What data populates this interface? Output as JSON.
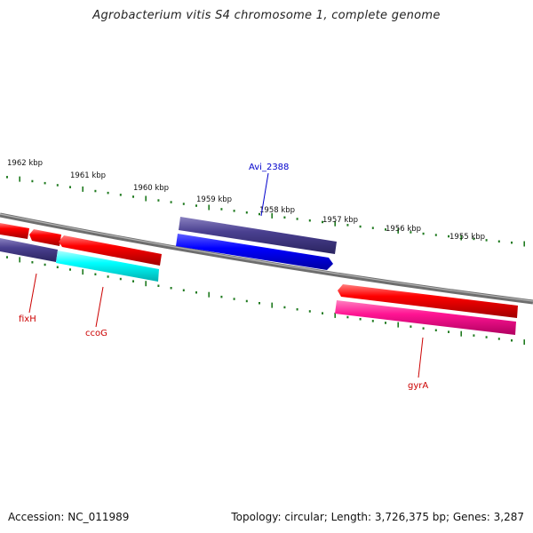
{
  "title": "Agrobacterium vitis S4 chromosome 1, complete genome",
  "footer": {
    "accession": "Accession: NC_011989",
    "summary": "Topology: circular; Length: 3,726,375 bp; Genes: 3,287"
  },
  "colors": {
    "backbone": "#808080",
    "tick": "#1f7a1f",
    "red_gene": "#ff0000",
    "purple_gene": "#4a4090",
    "cyan_gene": "#00ffff",
    "blue_gene": "#0000ff",
    "pink_gene": "#ff1493",
    "label_red": "#cc0000",
    "label_blue": "#0000cc"
  },
  "scale_labels": [
    {
      "text": "1962 kbp",
      "kbp": 1962
    },
    {
      "text": "1961 kbp",
      "kbp": 1961
    },
    {
      "text": "1960 kbp",
      "kbp": 1960
    },
    {
      "text": "1959 kbp",
      "kbp": 1959
    },
    {
      "text": "1958 kbp",
      "kbp": 1958
    },
    {
      "text": "1957 kbp",
      "kbp": 1957
    },
    {
      "text": "1956 kbp",
      "kbp": 1956
    },
    {
      "text": "1955 kbp",
      "kbp": 1955
    }
  ],
  "gene_labels": [
    {
      "text": "Avi_2388",
      "color": "blue"
    },
    {
      "text": "fixH",
      "color": "red"
    },
    {
      "text": "ccoG",
      "color": "red"
    },
    {
      "text": "gyrA",
      "color": "red"
    }
  ]
}
